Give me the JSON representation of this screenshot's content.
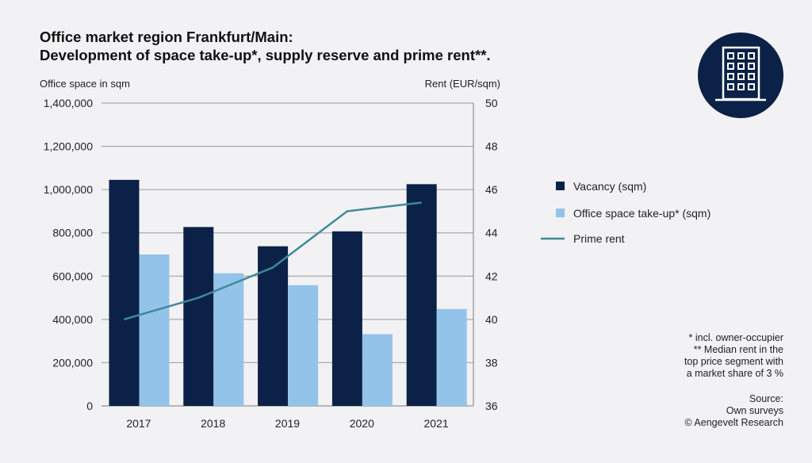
{
  "title_line1": "Office market region Frankfurt/Main:",
  "title_line2": "Development of space take-up*, supply reserve and prime rent**.",
  "notes": {
    "line1": "* incl. owner-occupier",
    "line2": "** Median rent in the",
    "line3": "top price segment with",
    "line4": "a market share of 3 %",
    "source_label": "Source:",
    "source1": "Own surveys",
    "source2": "© Aengevelt Research"
  },
  "logo": {
    "icon": "office-building-icon",
    "color": "#0b2147"
  },
  "colors": {
    "vacancy": "#0b2147",
    "takeup": "#94c3ea",
    "prime_rent": "#3e8a98",
    "grid": "#9a9a9a"
  },
  "chart_data": {
    "type": "bar",
    "categories": [
      "2017",
      "2018",
      "2019",
      "2020",
      "2021"
    ],
    "ylabel_left": "Office space in sqm",
    "ylabel_right": "Rent (EUR/sqm)",
    "ylim_left": [
      0,
      1400000
    ],
    "ylim_right": [
      36,
      50
    ],
    "yticks_left": [
      "0",
      "200,000",
      "400,000",
      "600,000",
      "800,000",
      "1,000,000",
      "1,200,000",
      "1,400,000"
    ],
    "yticks_right": [
      "36",
      "38",
      "40",
      "42",
      "44",
      "46",
      "48",
      "50"
    ],
    "grid": true,
    "legend_position": "right",
    "series": [
      {
        "name": "Vacancy (sqm)",
        "type": "bar",
        "axis": "left",
        "values": [
          1045000,
          827000,
          738000,
          807000,
          1025000
        ]
      },
      {
        "name": "Office space take-up* (sqm)",
        "type": "bar",
        "axis": "left",
        "values": [
          700000,
          613000,
          558000,
          332000,
          448000
        ]
      },
      {
        "name": "Prime rent",
        "type": "line",
        "axis": "right",
        "values": [
          40.0,
          41.0,
          42.4,
          45.0,
          45.4
        ]
      }
    ]
  }
}
